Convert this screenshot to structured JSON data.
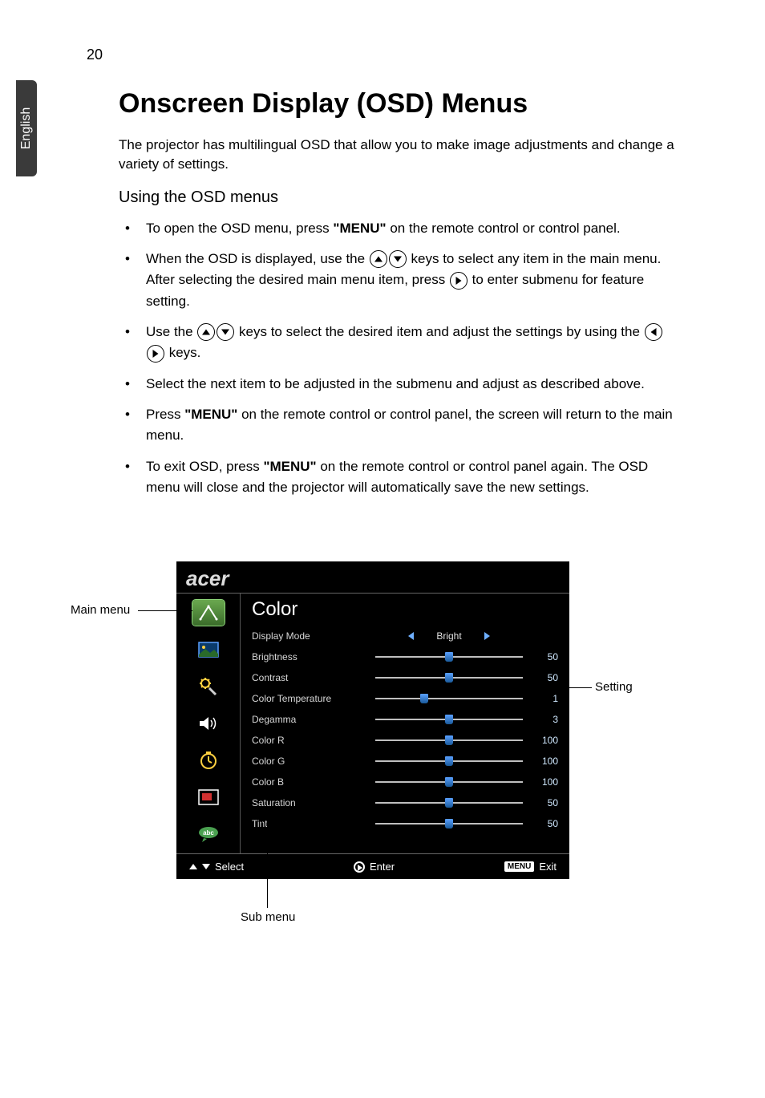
{
  "page_number": "20",
  "language_tab": "English",
  "heading": "Onscreen Display (OSD) Menus",
  "intro": "The projector has multilingual OSD that allow you to make image adjustments and change a variety of settings.",
  "subheading": "Using the OSD menus",
  "bullet1_a": "To open the OSD menu, press ",
  "bullet1_b": "\"MENU\"",
  "bullet1_c": " on the remote control or control panel.",
  "bullet2_a": "When the OSD is displayed, use the ",
  "bullet2_b": " keys to select any item in the main menu. After selecting the desired main menu item, press ",
  "bullet2_c": " to enter submenu for feature setting.",
  "bullet3_a": "Use the ",
  "bullet3_b": " keys to select the desired item and adjust the settings by using the ",
  "bullet3_c": " keys.",
  "bullet4": "Select the next item to be adjusted in the submenu and adjust as described above.",
  "bullet5_a": "Press ",
  "bullet5_b": "\"MENU\"",
  "bullet5_c": " on the remote control or control panel, the screen will return to the main menu.",
  "bullet6_a": "To exit OSD, press ",
  "bullet6_b": "\"MENU\"",
  "bullet6_c": " on the remote control or control panel again. The OSD menu will close and the projector will automatically save the new settings.",
  "callouts": {
    "main_menu": "Main menu",
    "sub_menu": "Sub menu",
    "setting": "Setting"
  },
  "osd": {
    "brand": "acer",
    "title": "Color",
    "items": [
      {
        "label": "Display Mode",
        "type": "select",
        "value": "Bright"
      },
      {
        "label": "Brightness",
        "type": "slider",
        "value": 50,
        "min": 0,
        "max": 100
      },
      {
        "label": "Contrast",
        "type": "slider",
        "value": 50,
        "min": 0,
        "max": 100
      },
      {
        "label": "Color Temperature",
        "type": "slider",
        "value": 1,
        "min": 0,
        "max": 3
      },
      {
        "label": "Degamma",
        "type": "slider",
        "value": 3,
        "min": 0,
        "max": 6
      },
      {
        "label": "Color R",
        "type": "slider",
        "value": 100,
        "min": 0,
        "max": 200
      },
      {
        "label": "Color G",
        "type": "slider",
        "value": 100,
        "min": 0,
        "max": 200
      },
      {
        "label": "Color B",
        "type": "slider",
        "value": 100,
        "min": 0,
        "max": 200
      },
      {
        "label": "Saturation",
        "type": "slider",
        "value": 50,
        "min": 0,
        "max": 100
      },
      {
        "label": "Tint",
        "type": "slider",
        "value": 50,
        "min": 0,
        "max": 100
      }
    ],
    "footer": {
      "select": "Select",
      "enter": "Enter",
      "menu_badge": "MENU",
      "exit": "Exit"
    },
    "colors": {
      "bg": "#000000",
      "text": "#d6d6d6",
      "value_text": "#cfe8ff",
      "slider_track": "#bfbfbf",
      "slider_thumb_top": "#5aa0ff",
      "slider_thumb_bottom": "#1a5a9a",
      "arrow_blue": "#6fb0ff",
      "tab_selected_top": "#6aa84f",
      "tab_selected_bottom": "#3a6b2a"
    }
  }
}
